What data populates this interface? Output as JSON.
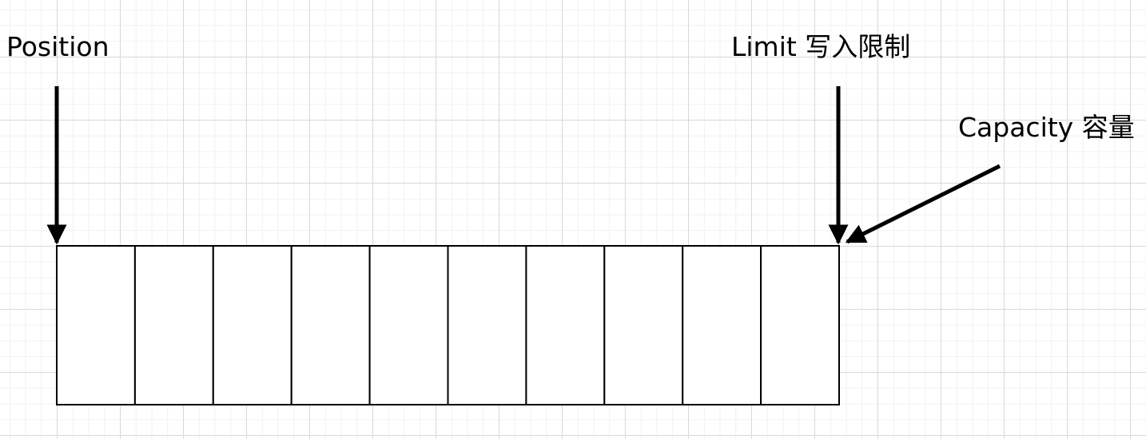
{
  "labels": {
    "position": "Position",
    "limit": "Limit 写入限制",
    "capacity": "Capacity 容量"
  },
  "buffer": {
    "cell_count": 10
  },
  "colors": {
    "stroke": "#000000",
    "cell_fill": "#ffffff",
    "grid_major": "#d9d9d9",
    "grid_minor": "#f0f0f0"
  }
}
